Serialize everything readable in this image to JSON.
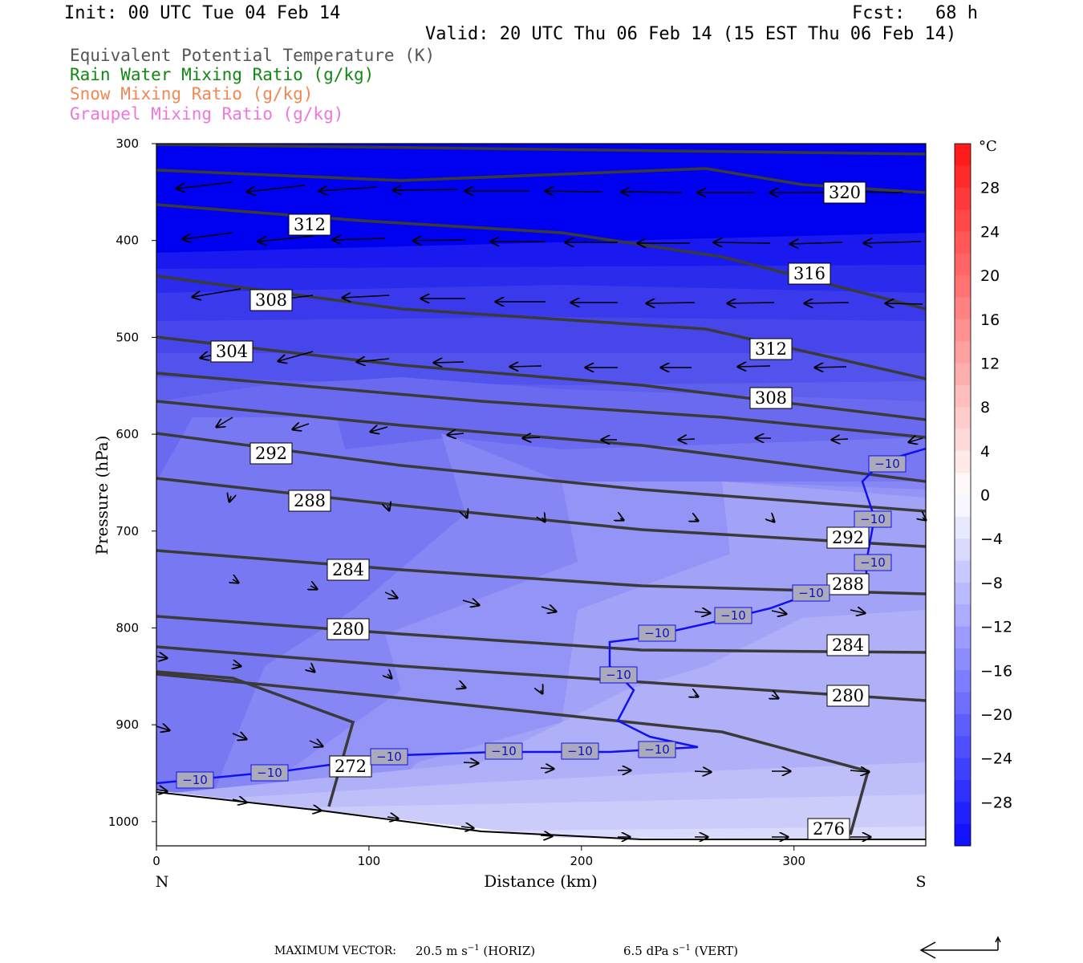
{
  "header": {
    "init": "Init: 00 UTC Tue 04 Feb 14",
    "fcst_label": "Fcst:",
    "fcst_value": "68 h",
    "valid": "Valid: 20 UTC Thu 06 Feb 14 (15 EST Thu 06 Feb 14)"
  },
  "legend": [
    {
      "label": "Equivalent Potential Temperature (K)",
      "color": "#555555"
    },
    {
      "label": "Rain Water Mixing Ratio (g/kg)",
      "color": "#118811"
    },
    {
      "label": "Snow Mixing Ratio (g/kg)",
      "color": "#ee8855"
    },
    {
      "label": "Graupel Mixing Ratio (g/kg)",
      "color": "#ee77dd"
    }
  ],
  "chart_data": {
    "type": "contour-cross-section",
    "xlabel": "Distance (km)",
    "ylabel": "Pressure (hPa)",
    "x_ticks": [
      0,
      100,
      200,
      300
    ],
    "y_ticks": [
      300,
      400,
      500,
      600,
      700,
      800,
      900,
      1000
    ],
    "xlim": [
      0,
      362
    ],
    "ylim": [
      1025,
      300
    ],
    "x_end_labels": {
      "left": "N",
      "right": "S"
    },
    "colorbar": {
      "unit": "°C",
      "ticks": [
        28,
        24,
        20,
        16,
        12,
        8,
        4,
        0,
        -4,
        -8,
        -12,
        -16,
        -20,
        -24,
        -28
      ],
      "labels": [
        "28",
        "24",
        "20",
        "16",
        "12",
        "8",
        "4",
        "0",
        "−4",
        "−8",
        "−12",
        "−16",
        "−20",
        "−24",
        "−28"
      ],
      "range": [
        -32,
        32
      ]
    },
    "theta_e_label_values": [
      "320",
      "316",
      "312",
      "312",
      "308",
      "308",
      "304",
      "292",
      "292",
      "288",
      "288",
      "284",
      "284",
      "280",
      "280",
      "276",
      "272"
    ],
    "temperature_label_value": "−10"
  },
  "footer": {
    "max_vector_label": "MAXIMUM VECTOR:",
    "horiz_value": "20.5 m s",
    "horiz_sup": "−1",
    "horiz_tag": "(HORIZ)",
    "vert_value": "6.5 dPa s",
    "vert_sup": "−1",
    "vert_tag": "(VERT)"
  }
}
